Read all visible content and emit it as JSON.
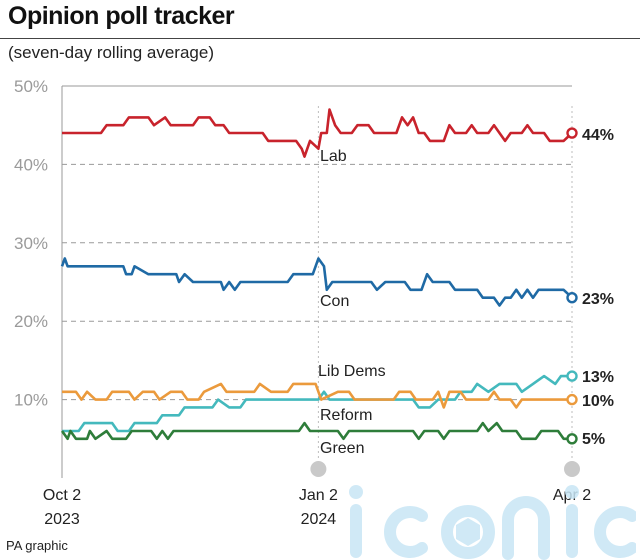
{
  "header": {
    "title": "Opinion poll tracker",
    "subtitle": "(seven-day rolling average)",
    "credit": "PA graphic"
  },
  "watermark": {
    "text": "iconic",
    "color": "#c8e6f5"
  },
  "chart_data": {
    "type": "line",
    "title": "Opinion poll tracker",
    "subtitle": "(seven-day rolling average)",
    "xlabel": "",
    "ylabel": "",
    "ylim": [
      0,
      50
    ],
    "yticks": [
      10,
      20,
      30,
      40,
      50
    ],
    "ytick_labels": [
      "10%",
      "20%",
      "30%",
      "40%",
      "50%"
    ],
    "grid": true,
    "xlim": [
      "2023-10-02",
      "2024-04-02"
    ],
    "xticks": [
      {
        "date": "2023-10-02",
        "line1": "Oct 2",
        "line2": "2023"
      },
      {
        "date": "2024-01-02",
        "line1": "Jan 2",
        "line2": "2024"
      },
      {
        "date": "2024-04-02",
        "line1": "Apr 2",
        "line2": ""
      }
    ],
    "series": [
      {
        "name": "Lab",
        "color": "#c8232c",
        "end_label": "44%",
        "points": [
          [
            "2023-10-02",
            44
          ],
          [
            "2023-10-16",
            44
          ],
          [
            "2023-10-18",
            45
          ],
          [
            "2023-10-24",
            45
          ],
          [
            "2023-10-26",
            46
          ],
          [
            "2023-11-02",
            46
          ],
          [
            "2023-11-04",
            45
          ],
          [
            "2023-11-08",
            46
          ],
          [
            "2023-11-10",
            45
          ],
          [
            "2023-11-18",
            45
          ],
          [
            "2023-11-20",
            46
          ],
          [
            "2023-11-24",
            46
          ],
          [
            "2023-11-26",
            45
          ],
          [
            "2023-11-29",
            45
          ],
          [
            "2023-12-01",
            44
          ],
          [
            "2023-12-13",
            44
          ],
          [
            "2023-12-15",
            43
          ],
          [
            "2023-12-25",
            43
          ],
          [
            "2023-12-27",
            42
          ],
          [
            "2023-12-28",
            41
          ],
          [
            "2023-12-30",
            43
          ],
          [
            "2024-01-02",
            42
          ],
          [
            "2024-01-03",
            44
          ],
          [
            "2024-01-05",
            44
          ],
          [
            "2024-01-06",
            47
          ],
          [
            "2024-01-08",
            45
          ],
          [
            "2024-01-10",
            44
          ],
          [
            "2024-01-14",
            44
          ],
          [
            "2024-01-16",
            45
          ],
          [
            "2024-01-20",
            45
          ],
          [
            "2024-01-22",
            44
          ],
          [
            "2024-01-30",
            44
          ],
          [
            "2024-02-01",
            46
          ],
          [
            "2024-02-03",
            45
          ],
          [
            "2024-02-05",
            46
          ],
          [
            "2024-02-07",
            44
          ],
          [
            "2024-02-09",
            44
          ],
          [
            "2024-02-11",
            43
          ],
          [
            "2024-02-16",
            43
          ],
          [
            "2024-02-18",
            45
          ],
          [
            "2024-02-20",
            44
          ],
          [
            "2024-02-24",
            44
          ],
          [
            "2024-02-26",
            45
          ],
          [
            "2024-02-28",
            44
          ],
          [
            "2024-03-03",
            44
          ],
          [
            "2024-03-05",
            45
          ],
          [
            "2024-03-07",
            44
          ],
          [
            "2024-03-09",
            43
          ],
          [
            "2024-03-11",
            44
          ],
          [
            "2024-03-15",
            44
          ],
          [
            "2024-03-17",
            45
          ],
          [
            "2024-03-19",
            44
          ],
          [
            "2024-03-23",
            44
          ],
          [
            "2024-03-25",
            43
          ],
          [
            "2024-03-30",
            43
          ],
          [
            "2024-04-02",
            44
          ]
        ]
      },
      {
        "name": "Con",
        "color": "#1f6aa5",
        "end_label": "23%",
        "points": [
          [
            "2023-10-02",
            27
          ],
          [
            "2023-10-03",
            28
          ],
          [
            "2023-10-04",
            27
          ],
          [
            "2023-10-24",
            27
          ],
          [
            "2023-10-25",
            26
          ],
          [
            "2023-10-27",
            26
          ],
          [
            "2023-10-28",
            27
          ],
          [
            "2023-11-02",
            26
          ],
          [
            "2023-11-12",
            26
          ],
          [
            "2023-11-13",
            25
          ],
          [
            "2023-11-15",
            26
          ],
          [
            "2023-11-18",
            25
          ],
          [
            "2023-11-28",
            25
          ],
          [
            "2023-11-29",
            24
          ],
          [
            "2023-12-01",
            25
          ],
          [
            "2023-12-03",
            24
          ],
          [
            "2023-12-05",
            25
          ],
          [
            "2023-12-22",
            25
          ],
          [
            "2023-12-24",
            26
          ],
          [
            "2023-12-31",
            26
          ],
          [
            "2024-01-02",
            28
          ],
          [
            "2024-01-04",
            27
          ],
          [
            "2024-01-05",
            24
          ],
          [
            "2024-01-07",
            25
          ],
          [
            "2024-01-21",
            25
          ],
          [
            "2024-01-23",
            24
          ],
          [
            "2024-01-26",
            25
          ],
          [
            "2024-02-02",
            25
          ],
          [
            "2024-02-04",
            24
          ],
          [
            "2024-02-08",
            24
          ],
          [
            "2024-02-10",
            26
          ],
          [
            "2024-02-12",
            25
          ],
          [
            "2024-02-18",
            25
          ],
          [
            "2024-02-20",
            24
          ],
          [
            "2024-02-28",
            24
          ],
          [
            "2024-03-01",
            23
          ],
          [
            "2024-03-05",
            23
          ],
          [
            "2024-03-07",
            22
          ],
          [
            "2024-03-09",
            23
          ],
          [
            "2024-03-11",
            23
          ],
          [
            "2024-03-13",
            24
          ],
          [
            "2024-03-15",
            23
          ],
          [
            "2024-03-17",
            24
          ],
          [
            "2024-03-19",
            23
          ],
          [
            "2024-03-21",
            24
          ],
          [
            "2024-03-30",
            24
          ],
          [
            "2024-04-02",
            23
          ]
        ]
      },
      {
        "name": "Lib Dems",
        "color": "#44b9bd",
        "end_label": "13%",
        "points": [
          [
            "2023-10-02",
            6
          ],
          [
            "2023-10-08",
            6
          ],
          [
            "2023-10-10",
            7
          ],
          [
            "2023-10-20",
            7
          ],
          [
            "2023-10-22",
            6
          ],
          [
            "2023-10-26",
            6
          ],
          [
            "2023-10-28",
            7
          ],
          [
            "2023-11-05",
            7
          ],
          [
            "2023-11-07",
            8
          ],
          [
            "2023-11-13",
            8
          ],
          [
            "2023-11-15",
            9
          ],
          [
            "2023-11-25",
            9
          ],
          [
            "2023-11-27",
            10
          ],
          [
            "2023-12-01",
            9
          ],
          [
            "2023-12-05",
            9
          ],
          [
            "2023-12-07",
            10
          ],
          [
            "2023-12-29",
            10
          ],
          [
            "2024-01-02",
            10
          ],
          [
            "2024-01-04",
            11
          ],
          [
            "2024-01-06",
            10
          ],
          [
            "2024-02-05",
            10
          ],
          [
            "2024-02-07",
            9
          ],
          [
            "2024-02-11",
            9
          ],
          [
            "2024-02-14",
            10
          ],
          [
            "2024-02-20",
            10
          ],
          [
            "2024-02-22",
            11
          ],
          [
            "2024-02-26",
            11
          ],
          [
            "2024-02-28",
            12
          ],
          [
            "2024-03-03",
            11
          ],
          [
            "2024-03-07",
            12
          ],
          [
            "2024-03-13",
            12
          ],
          [
            "2024-03-15",
            11
          ],
          [
            "2024-03-19",
            12
          ],
          [
            "2024-03-23",
            13
          ],
          [
            "2024-03-27",
            12
          ],
          [
            "2024-03-29",
            13
          ],
          [
            "2024-04-02",
            13
          ]
        ]
      },
      {
        "name": "Reform",
        "color": "#eb9a3c",
        "end_label": "10%",
        "points": [
          [
            "2023-10-02",
            11
          ],
          [
            "2023-10-07",
            11
          ],
          [
            "2023-10-09",
            10
          ],
          [
            "2023-10-11",
            11
          ],
          [
            "2023-10-14",
            10
          ],
          [
            "2023-10-18",
            10
          ],
          [
            "2023-10-20",
            11
          ],
          [
            "2023-10-26",
            11
          ],
          [
            "2023-10-28",
            10
          ],
          [
            "2023-10-31",
            11
          ],
          [
            "2023-11-04",
            11
          ],
          [
            "2023-11-06",
            10
          ],
          [
            "2023-11-10",
            11
          ],
          [
            "2023-11-14",
            11
          ],
          [
            "2023-11-16",
            10
          ],
          [
            "2023-11-20",
            10
          ],
          [
            "2023-11-22",
            11
          ],
          [
            "2023-11-28",
            12
          ],
          [
            "2023-11-30",
            11
          ],
          [
            "2023-12-10",
            11
          ],
          [
            "2023-12-12",
            12
          ],
          [
            "2023-12-16",
            11
          ],
          [
            "2023-12-22",
            11
          ],
          [
            "2023-12-24",
            12
          ],
          [
            "2024-01-01",
            12
          ],
          [
            "2024-01-03",
            10
          ],
          [
            "2024-01-09",
            11
          ],
          [
            "2024-01-13",
            11
          ],
          [
            "2024-01-15",
            10
          ],
          [
            "2024-01-29",
            10
          ],
          [
            "2024-01-31",
            11
          ],
          [
            "2024-02-04",
            11
          ],
          [
            "2024-02-06",
            10
          ],
          [
            "2024-02-12",
            10
          ],
          [
            "2024-02-14",
            11
          ],
          [
            "2024-02-16",
            9
          ],
          [
            "2024-02-18",
            11
          ],
          [
            "2024-02-22",
            11
          ],
          [
            "2024-02-24",
            10
          ],
          [
            "2024-03-03",
            10
          ],
          [
            "2024-03-05",
            11
          ],
          [
            "2024-03-07",
            10
          ],
          [
            "2024-03-11",
            10
          ],
          [
            "2024-03-13",
            9
          ],
          [
            "2024-03-15",
            10
          ],
          [
            "2024-04-02",
            10
          ]
        ]
      },
      {
        "name": "Green",
        "color": "#2e7d3a",
        "end_label": "5%",
        "points": [
          [
            "2023-10-02",
            6
          ],
          [
            "2023-10-04",
            5
          ],
          [
            "2023-10-05",
            6
          ],
          [
            "2023-10-07",
            5
          ],
          [
            "2023-10-11",
            5
          ],
          [
            "2023-10-12",
            6
          ],
          [
            "2023-10-14",
            5
          ],
          [
            "2023-10-18",
            6
          ],
          [
            "2023-10-20",
            5
          ],
          [
            "2023-10-25",
            5
          ],
          [
            "2023-10-27",
            6
          ],
          [
            "2023-11-03",
            6
          ],
          [
            "2023-11-05",
            5
          ],
          [
            "2023-11-07",
            6
          ],
          [
            "2023-11-09",
            5
          ],
          [
            "2023-11-11",
            6
          ],
          [
            "2023-12-26",
            6
          ],
          [
            "2023-12-28",
            7
          ],
          [
            "2023-12-30",
            6
          ],
          [
            "2024-01-09",
            6
          ],
          [
            "2024-01-11",
            5
          ],
          [
            "2024-01-13",
            6
          ],
          [
            "2024-02-05",
            6
          ],
          [
            "2024-02-07",
            5
          ],
          [
            "2024-02-09",
            6
          ],
          [
            "2024-02-14",
            6
          ],
          [
            "2024-02-16",
            5
          ],
          [
            "2024-02-18",
            6
          ],
          [
            "2024-02-28",
            6
          ],
          [
            "2024-03-01",
            7
          ],
          [
            "2024-03-03",
            6
          ],
          [
            "2024-03-06",
            7
          ],
          [
            "2024-03-08",
            6
          ],
          [
            "2024-03-13",
            6
          ],
          [
            "2024-03-15",
            5
          ],
          [
            "2024-03-20",
            5
          ],
          [
            "2024-03-22",
            6
          ],
          [
            "2024-03-28",
            6
          ],
          [
            "2024-03-30",
            5
          ],
          [
            "2024-04-02",
            5
          ]
        ]
      }
    ]
  }
}
